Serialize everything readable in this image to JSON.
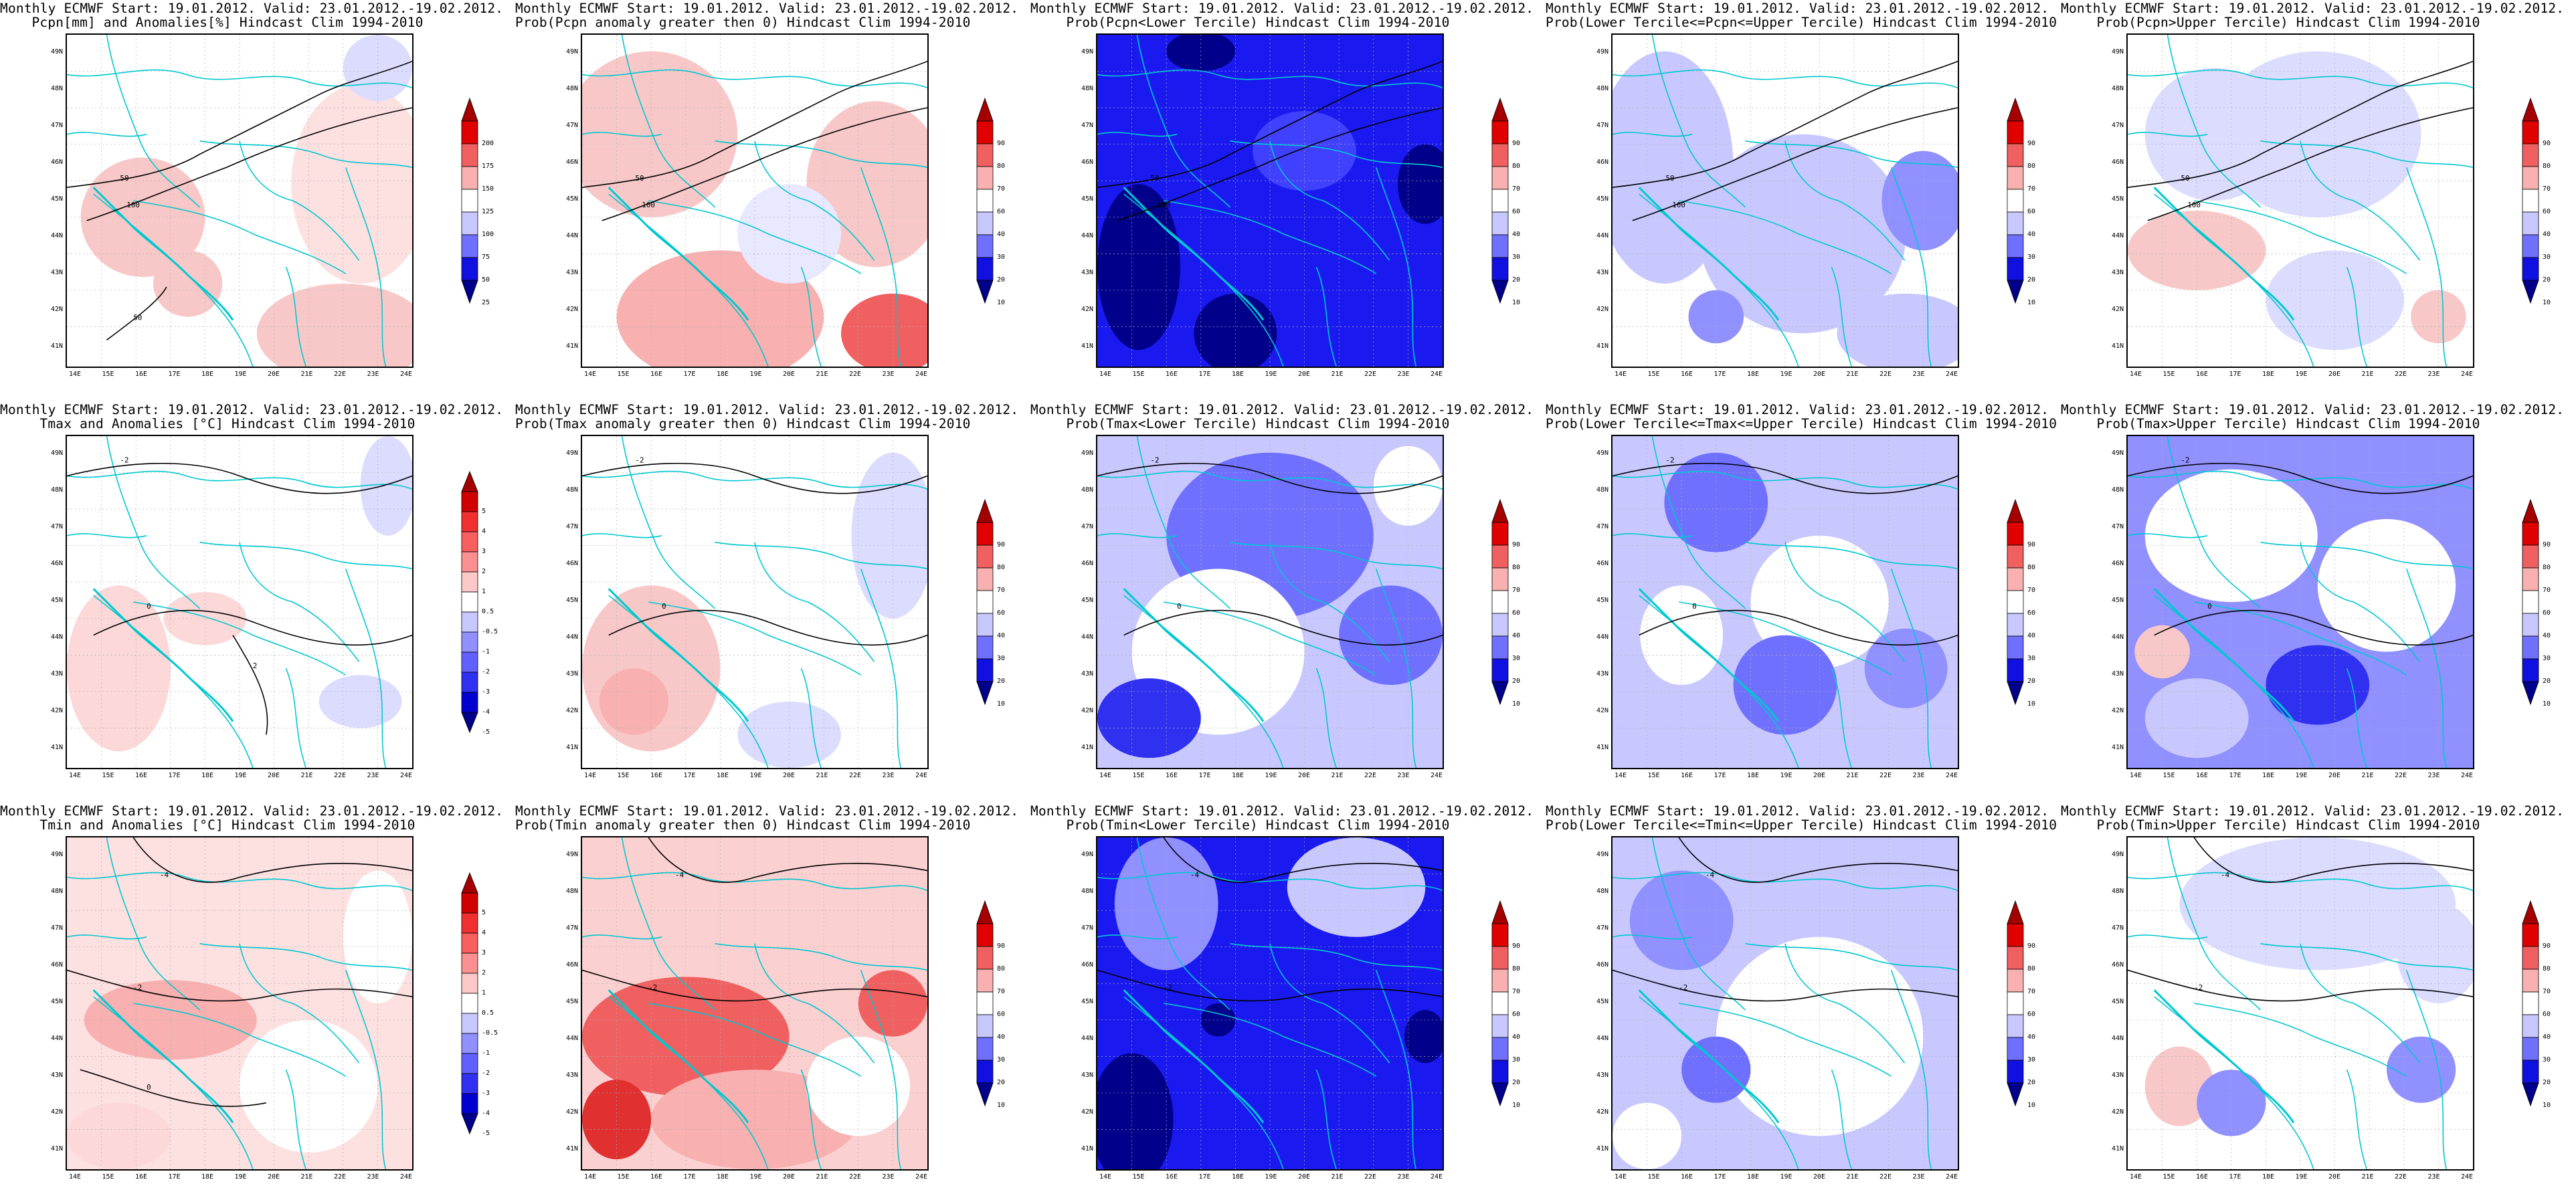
{
  "header_line1": "Monthly ECMWF Start: 19.01.2012. Valid: 23.01.2012.-19.02.2012.",
  "lat_labels": [
    "49N",
    "48N",
    "47N",
    "46N",
    "45N",
    "44N",
    "43N",
    "42N",
    "41N"
  ],
  "lon_labels": [
    "14E",
    "15E",
    "16E",
    "17E",
    "18E",
    "19E",
    "20E",
    "21E",
    "22E",
    "23E",
    "24E"
  ],
  "colorbars": {
    "pcpn": {
      "labels": [
        "200",
        "175",
        "150",
        "125",
        "100",
        "75",
        "50",
        "25"
      ],
      "colors": [
        "#a50000",
        "#e00000",
        "#f06060",
        "#f8b0b0",
        "#ffffff",
        "#c8c8ff",
        "#7070ff",
        "#1010e0",
        "#00008b"
      ]
    },
    "temp": {
      "labels": [
        "5",
        "4",
        "3",
        "2",
        "1",
        "0.5",
        "-0.5",
        "-1",
        "-2",
        "-3",
        "-4",
        "-5"
      ],
      "colors": [
        "#a50000",
        "#d00000",
        "#f03030",
        "#f86060",
        "#fa9090",
        "#fcc8c8",
        "#ffffff",
        "#c8c8ff",
        "#9090ff",
        "#6060ff",
        "#3030f0",
        "#0000d0",
        "#00008b"
      ]
    },
    "prob": {
      "labels": [
        "90",
        "80",
        "70",
        "60",
        "40",
        "30",
        "20",
        "10"
      ],
      "colors": [
        "#a50000",
        "#e00000",
        "#f06060",
        "#f8b0b0",
        "#ffffff",
        "#c8c8ff",
        "#7070ff",
        "#1010e0",
        "#00008b"
      ]
    }
  },
  "panels": [
    {
      "title": "Pcpn[mm] and Anomalies[%] Hindcast Clim 1994-2010",
      "cbar": "pcpn",
      "bg": "#ffffff",
      "blobs": [
        [
          "#f8c8c8",
          0.22,
          0.55,
          0.18,
          0.18
        ],
        [
          "#fde0e0",
          0.85,
          0.45,
          0.2,
          0.3
        ],
        [
          "#f8c8c8",
          0.8,
          0.9,
          0.25,
          0.15
        ],
        [
          "#dcdcff",
          0.9,
          0.1,
          0.1,
          0.1
        ],
        [
          "#f8c8c8",
          0.35,
          0.75,
          0.1,
          0.1
        ]
      ],
      "contours": [
        [
          "#000",
          "50",
          "M0,230 C80,220 150,210 200,180 C260,150 320,120 380,90 C420,70 470,60 520,40"
        ],
        [
          "#000",
          "100",
          "M30,280 C90,260 160,230 240,200 C330,160 420,130 520,110"
        ],
        [
          "#000",
          "50",
          "M60,460 C100,430 140,400 150,380"
        ]
      ]
    },
    {
      "title": "Prob(Pcpn anomaly greater then 0) Hindcast Clim 1994-2010",
      "cbar": "prob",
      "bg": "#ffffff",
      "blobs": [
        [
          "#f8c8c8",
          0.2,
          0.3,
          0.25,
          0.25
        ],
        [
          "#f8b0b0",
          0.4,
          0.85,
          0.3,
          0.2
        ],
        [
          "#f06060",
          0.9,
          0.9,
          0.15,
          0.12
        ],
        [
          "#f8c8c8",
          0.85,
          0.45,
          0.2,
          0.25
        ],
        [
          "#e8e8ff",
          0.6,
          0.6,
          0.15,
          0.15
        ]
      ],
      "contours": [
        [
          "#000",
          "50",
          "M0,230 C80,220 150,210 200,180 C260,150 320,120 380,90 C420,70 470,60 520,40"
        ],
        [
          "#000",
          "100",
          "M30,280 C90,260 160,230 240,200 C330,160 420,130 520,110"
        ]
      ]
    },
    {
      "title": "Prob(Pcpn<Lower Tercile) Hindcast Clim 1994-2010",
      "cbar": "prob",
      "bg": "#1a1af0",
      "blobs": [
        [
          "#00008b",
          0.12,
          0.7,
          0.12,
          0.25
        ],
        [
          "#00008b",
          0.4,
          0.9,
          0.12,
          0.12
        ],
        [
          "#00008b",
          0.95,
          0.45,
          0.08,
          0.12
        ],
        [
          "#4040ff",
          0.6,
          0.35,
          0.15,
          0.12
        ],
        [
          "#00008b",
          0.3,
          0.05,
          0.1,
          0.06
        ]
      ],
      "contours": [
        [
          "#000",
          "50",
          "M0,230 C80,220 150,210 200,180 C260,150 320,120 380,90 C420,70 470,60 520,40"
        ],
        [
          "#000",
          "100",
          "M30,280 C90,260 160,230 240,200 C330,160 420,130 520,110"
        ]
      ]
    },
    {
      "title": "Prob(Lower Tercile<=Pcpn<=Upper Tercile) Hindcast Clim 1994-2010",
      "cbar": "prob",
      "bg": "#ffffff",
      "blobs": [
        [
          "#c8c8ff",
          0.15,
          0.4,
          0.2,
          0.35
        ],
        [
          "#c8c8ff",
          0.55,
          0.6,
          0.3,
          0.3
        ],
        [
          "#9090ff",
          0.9,
          0.5,
          0.12,
          0.15
        ],
        [
          "#c8c8ff",
          0.85,
          0.9,
          0.2,
          0.12
        ],
        [
          "#9090ff",
          0.3,
          0.85,
          0.08,
          0.08
        ]
      ],
      "contours": [
        [
          "#000",
          "50",
          "M0,230 C80,220 150,210 200,180 C260,150 320,120 380,90 C420,70 470,60 520,40"
        ],
        [
          "#000",
          "100",
          "M30,280 C90,260 160,230 240,200 C330,160 420,130 520,110"
        ]
      ]
    },
    {
      "title": "Prob(Pcpn>Upper Tercile) Hindcast Clim 1994-2010",
      "cbar": "prob",
      "bg": "#ffffff",
      "blobs": [
        [
          "#f8c8c8",
          0.2,
          0.65,
          0.2,
          0.12
        ],
        [
          "#dcdcff",
          0.55,
          0.3,
          0.3,
          0.25
        ],
        [
          "#dcdcff",
          0.25,
          0.3,
          0.2,
          0.2
        ],
        [
          "#f8c8c8",
          0.9,
          0.85,
          0.08,
          0.08
        ],
        [
          "#dcdcff",
          0.6,
          0.8,
          0.2,
          0.15
        ]
      ],
      "contours": [
        [
          "#000",
          "50",
          "M0,230 C80,220 150,210 200,180 C260,150 320,120 380,90 C420,70 470,60 520,40"
        ],
        [
          "#000",
          "100",
          "M30,280 C90,260 160,230 240,200 C330,160 420,130 520,110"
        ]
      ]
    },
    {
      "title": "Tmax and Anomalies [°C] Hindcast Clim 1994-2010",
      "cbar": "temp",
      "bg": "#ffffff",
      "blobs": [
        [
          "#fcd8d8",
          0.15,
          0.7,
          0.15,
          0.25
        ],
        [
          "#fcd8d8",
          0.4,
          0.55,
          0.12,
          0.08
        ],
        [
          "#dcdcff",
          0.93,
          0.15,
          0.08,
          0.15
        ],
        [
          "#dcdcff",
          0.85,
          0.8,
          0.12,
          0.08
        ]
      ],
      "contours": [
        [
          "#000",
          "-2",
          "M0,60 C80,40 180,30 260,60 C340,90 420,100 520,60"
        ],
        [
          "#000",
          "0",
          "M40,300 C120,260 200,250 280,280 C360,310 440,330 520,300"
        ],
        [
          "#000",
          "2",
          "M250,300 C280,350 310,400 300,450"
        ]
      ]
    },
    {
      "title": "Prob(Tmax anomaly greater then 0) Hindcast Clim 1994-2010",
      "cbar": "prob",
      "bg": "#ffffff",
      "blobs": [
        [
          "#f8c8c8",
          0.2,
          0.7,
          0.2,
          0.25
        ],
        [
          "#f8b0b0",
          0.15,
          0.8,
          0.1,
          0.1
        ],
        [
          "#dcdcff",
          0.9,
          0.3,
          0.12,
          0.25
        ],
        [
          "#dcdcff",
          0.6,
          0.9,
          0.15,
          0.1
        ]
      ],
      "contours": [
        [
          "#000",
          "-2",
          "M0,60 C80,40 180,30 260,60 C340,90 420,100 520,60"
        ],
        [
          "#000",
          "0",
          "M40,300 C120,260 200,250 280,280 C360,310 440,330 520,300"
        ]
      ]
    },
    {
      "title": "Prob(Tmax<Lower Tercile) Hindcast Clim 1994-2010",
      "cbar": "prob",
      "bg": "#c8c8ff",
      "blobs": [
        [
          "#7070ff",
          0.5,
          0.3,
          0.3,
          0.25
        ],
        [
          "#ffffff",
          0.35,
          0.65,
          0.25,
          0.25
        ],
        [
          "#3030f0",
          0.15,
          0.85,
          0.15,
          0.12
        ],
        [
          "#7070ff",
          0.85,
          0.6,
          0.15,
          0.15
        ],
        [
          "#ffffff",
          0.9,
          0.15,
          0.1,
          0.12
        ]
      ],
      "contours": [
        [
          "#000",
          "-2",
          "M0,60 C80,40 180,30 260,60 C340,90 420,100 520,60"
        ],
        [
          "#000",
          "0",
          "M40,300 C120,260 200,250 280,280 C360,310 440,330 520,300"
        ]
      ]
    },
    {
      "title": "Prob(Lower Tercile<=Tmax<=Upper Tercile) Hindcast Clim 1994-2010",
      "cbar": "prob",
      "bg": "#c8c8ff",
      "blobs": [
        [
          "#7070ff",
          0.3,
          0.2,
          0.15,
          0.15
        ],
        [
          "#ffffff",
          0.6,
          0.5,
          0.2,
          0.2
        ],
        [
          "#ffffff",
          0.2,
          0.6,
          0.12,
          0.15
        ],
        [
          "#7070ff",
          0.5,
          0.75,
          0.15,
          0.15
        ],
        [
          "#9090ff",
          0.85,
          0.7,
          0.12,
          0.12
        ]
      ],
      "contours": [
        [
          "#000",
          "-2",
          "M0,60 C80,40 180,30 260,60 C340,90 420,100 520,60"
        ],
        [
          "#000",
          "0",
          "M40,300 C120,260 200,250 280,280 C360,310 440,330 520,300"
        ]
      ]
    },
    {
      "title": "Prob(Tmax>Upper Tercile) Hindcast Clim 1994-2010",
      "cbar": "prob",
      "bg": "#9090ff",
      "blobs": [
        [
          "#ffffff",
          0.3,
          0.3,
          0.25,
          0.2
        ],
        [
          "#ffffff",
          0.75,
          0.45,
          0.2,
          0.2
        ],
        [
          "#f8c8c8",
          0.1,
          0.65,
          0.08,
          0.08
        ],
        [
          "#3030f0",
          0.55,
          0.75,
          0.15,
          0.12
        ],
        [
          "#c8c8ff",
          0.2,
          0.85,
          0.15,
          0.12
        ]
      ],
      "contours": [
        [
          "#000",
          "-2",
          "M0,60 C80,40 180,30 260,60 C340,90 420,100 520,60"
        ],
        [
          "#000",
          "0",
          "M40,300 C120,260 200,250 280,280 C360,310 440,330 520,300"
        ]
      ]
    },
    {
      "title": "Tmin and Anomalies [°C] Hindcast Clim 1994-2010",
      "cbar": "temp",
      "bg": "#fde0e0",
      "blobs": [
        [
          "#f8b0b0",
          0.3,
          0.55,
          0.25,
          0.12
        ],
        [
          "#ffffff",
          0.7,
          0.75,
          0.2,
          0.2
        ],
        [
          "#ffffff",
          0.9,
          0.3,
          0.1,
          0.2
        ],
        [
          "#fcd8d8",
          0.15,
          0.9,
          0.15,
          0.1
        ]
      ],
      "contours": [
        [
          "#000",
          "-4",
          "M100,0 C140,60 200,80 260,60 C340,40 420,30 520,50"
        ],
        [
          "#000",
          "-2",
          "M0,200 C100,230 200,260 300,240 C400,220 460,230 520,240"
        ],
        [
          "#000",
          "0",
          "M20,350 C120,380 200,420 300,400"
        ]
      ]
    },
    {
      "title": "Prob(Tmin anomaly greater then 0) Hindcast Clim 1994-2010",
      "cbar": "prob",
      "bg": "#fbd0d0",
      "blobs": [
        [
          "#f06060",
          0.3,
          0.6,
          0.3,
          0.18
        ],
        [
          "#f06060",
          0.9,
          0.5,
          0.1,
          0.1
        ],
        [
          "#e03030",
          0.1,
          0.85,
          0.1,
          0.12
        ],
        [
          "#f8b0b0",
          0.5,
          0.85,
          0.3,
          0.15
        ],
        [
          "#ffffff",
          0.8,
          0.75,
          0.15,
          0.15
        ]
      ],
      "contours": [
        [
          "#000",
          "-4",
          "M100,0 C140,60 200,80 260,60 C340,40 420,30 520,50"
        ],
        [
          "#000",
          "-2",
          "M0,200 C100,230 200,260 300,240 C400,220 460,230 520,240"
        ]
      ]
    },
    {
      "title": "Prob(Tmin<Lower Tercile) Hindcast Clim 1994-2010",
      "cbar": "prob",
      "bg": "#1a1af0",
      "blobs": [
        [
          "#00008b",
          0.1,
          0.85,
          0.12,
          0.2
        ],
        [
          "#9090ff",
          0.2,
          0.2,
          0.15,
          0.2
        ],
        [
          "#c8c8ff",
          0.75,
          0.15,
          0.2,
          0.15
        ],
        [
          "#00008b",
          0.95,
          0.6,
          0.06,
          0.08
        ],
        [
          "#00008b",
          0.35,
          0.55,
          0.05,
          0.05
        ]
      ],
      "contours": [
        [
          "#000",
          "-4",
          "M100,0 C140,60 200,80 260,60 C340,40 420,30 520,50"
        ],
        [
          "#000",
          "-2",
          "M0,200 C100,230 200,260 300,240 C400,220 460,230 520,240"
        ]
      ]
    },
    {
      "title": "Prob(Lower Tercile<=Tmin<=Upper Tercile) Hindcast Clim 1994-2010",
      "cbar": "prob",
      "bg": "#c8c8ff",
      "blobs": [
        [
          "#ffffff",
          0.6,
          0.6,
          0.3,
          0.3
        ],
        [
          "#9090ff",
          0.2,
          0.25,
          0.15,
          0.15
        ],
        [
          "#ffffff",
          0.1,
          0.9,
          0.1,
          0.1
        ],
        [
          "#7070ff",
          0.3,
          0.7,
          0.1,
          0.1
        ]
      ],
      "contours": [
        [
          "#000",
          "-4",
          "M100,0 C140,60 200,80 260,60 C340,40 420,30 520,50"
        ],
        [
          "#000",
          "-2",
          "M0,200 C100,230 200,260 300,240 C400,220 460,230 520,240"
        ]
      ]
    },
    {
      "title": "Prob(Tmin>Upper Tercile) Hindcast Clim 1994-2010",
      "cbar": "prob",
      "bg": "#ffffff",
      "blobs": [
        [
          "#dcdcff",
          0.55,
          0.2,
          0.4,
          0.2
        ],
        [
          "#9090ff",
          0.85,
          0.7,
          0.1,
          0.1
        ],
        [
          "#f8c8c8",
          0.15,
          0.75,
          0.1,
          0.12
        ],
        [
          "#9090ff",
          0.3,
          0.8,
          0.1,
          0.1
        ],
        [
          "#dcdcff",
          0.9,
          0.35,
          0.12,
          0.15
        ]
      ],
      "contours": [
        [
          "#000",
          "-4",
          "M100,0 C140,60 200,80 260,60 C340,40 420,30 520,50"
        ],
        [
          "#000",
          "-2",
          "M0,200 C100,230 200,260 300,240 C400,220 460,230 520,240"
        ]
      ]
    }
  ]
}
